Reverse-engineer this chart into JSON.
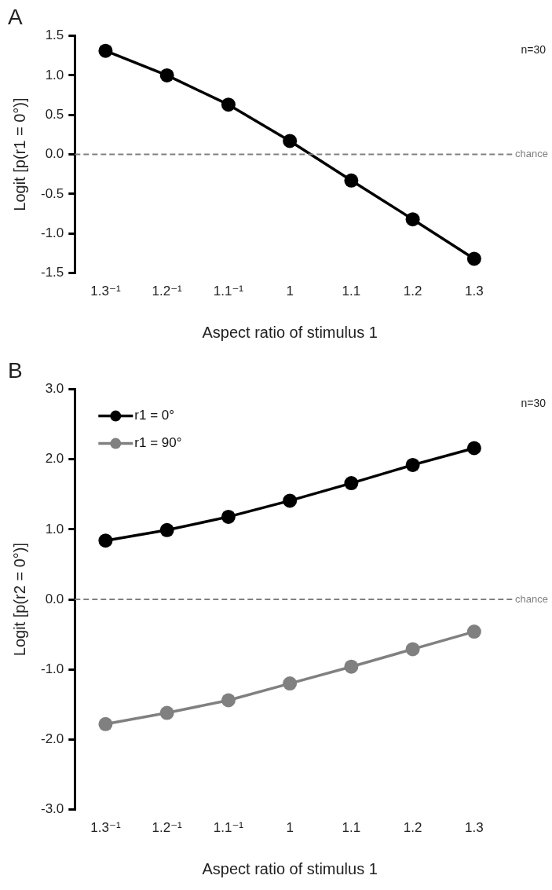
{
  "chart_data": [
    {
      "type": "line",
      "title": "A",
      "xlabel": "Aspect ratio of stimulus 1",
      "ylabel": "Logit [p(r1 = 0°)]",
      "categories": [
        "1.3⁻¹",
        "1.2⁻¹",
        "1.1⁻¹",
        "1",
        "1.1",
        "1.2",
        "1.3"
      ],
      "series": [
        {
          "color": "#000000",
          "values": [
            1.31,
            1.0,
            0.63,
            0.17,
            -0.33,
            -0.82,
            -1.32
          ]
        }
      ],
      "ylim": [
        -1.5,
        1.5
      ],
      "yticks": [
        {
          "value": -1.5,
          "label": "-1.5"
        },
        {
          "value": -1.0,
          "label": "-1.0"
        },
        {
          "value": -0.5,
          "label": "-0.5"
        },
        {
          "value": 0,
          "label": "0.0"
        },
        0.5,
        {
          "value": 1.0,
          "label": "1.0"
        },
        1.5
      ],
      "ref_lines": [
        {
          "axis": "y",
          "value": 0,
          "label": "chance",
          "color": "#808080",
          "line_style": "dashed"
        }
      ],
      "annotations": [
        "n=30"
      ],
      "marker": "circle",
      "line_style": "solid",
      "grid": false
    },
    {
      "type": "line",
      "title": "B",
      "xlabel": "Aspect ratio of stimulus 1",
      "ylabel": "Logit [p(r2 = 0°)]",
      "categories": [
        "1.3⁻¹",
        "1.2⁻¹",
        "1.1⁻¹",
        "1",
        "1.1",
        "1.2",
        "1.3"
      ],
      "series": [
        {
          "name": "r1 = 0°",
          "color": "#000000",
          "values": [
            0.84,
            0.99,
            1.18,
            1.41,
            1.66,
            1.92,
            2.16
          ]
        },
        {
          "name": "r1 = 90°",
          "color": "#808080",
          "values": [
            -1.78,
            -1.62,
            -1.44,
            -1.2,
            -0.96,
            -0.71,
            -0.46
          ]
        }
      ],
      "ylim": [
        -3.0,
        3.0
      ],
      "yticks": [
        {
          "value": -3,
          "label": "-3.0"
        },
        {
          "value": -2,
          "label": "-2.0"
        },
        {
          "value": -1,
          "label": "-1.0"
        },
        {
          "value": 0,
          "label": "0.0"
        },
        {
          "value": 1,
          "label": "1.0"
        },
        {
          "value": 2,
          "label": "2.0"
        },
        {
          "value": 3,
          "label": "3.0"
        }
      ],
      "ref_lines": [
        {
          "axis": "y",
          "value": 0,
          "label": "chance",
          "color": "#808080",
          "line_style": "dashed"
        }
      ],
      "annotations": [
        "n=30"
      ],
      "legend": "top left",
      "marker": "circle",
      "line_style": "solid",
      "grid": false
    }
  ]
}
